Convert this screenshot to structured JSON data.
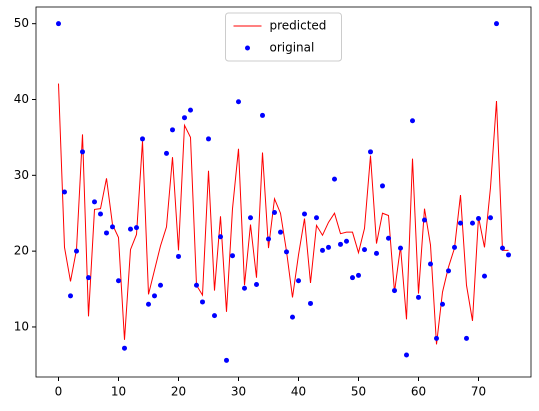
{
  "chart_data": {
    "type": "line_scatter",
    "x": [
      0,
      1,
      2,
      3,
      4,
      5,
      6,
      7,
      8,
      9,
      10,
      11,
      12,
      13,
      14,
      15,
      16,
      17,
      18,
      19,
      20,
      21,
      22,
      23,
      24,
      25,
      26,
      27,
      28,
      29,
      30,
      31,
      32,
      33,
      34,
      35,
      36,
      37,
      38,
      39,
      40,
      41,
      42,
      43,
      44,
      45,
      46,
      47,
      48,
      49,
      50,
      51,
      52,
      53,
      54,
      55,
      56,
      57,
      58,
      59,
      60,
      61,
      62,
      63,
      64,
      65,
      66,
      67,
      68,
      69,
      70,
      71,
      72,
      73,
      74,
      75
    ],
    "series": [
      {
        "name": "predicted",
        "kind": "line",
        "color": "#ff0000",
        "values": [
          42.1,
          20.5,
          16.0,
          20.2,
          35.4,
          11.4,
          25.5,
          25.6,
          29.6,
          23.5,
          21.8,
          8.3,
          20.2,
          22.2,
          34.5,
          14.3,
          17.5,
          20.7,
          23.2,
          32.4,
          20.1,
          36.6,
          35.0,
          15.5,
          14.2,
          30.6,
          14.8,
          24.6,
          12.0,
          25.6,
          33.5,
          15.5,
          23.5,
          16.5,
          33.0,
          20.4,
          26.9,
          25.0,
          20.0,
          13.9,
          19.5,
          24.3,
          15.8,
          23.4,
          22.1,
          23.8,
          25.0,
          22.3,
          22.5,
          22.5,
          19.8,
          23.0,
          32.6,
          21.0,
          25.0,
          24.7,
          14.6,
          20.6,
          11.0,
          32.2,
          14.4,
          25.6,
          20.8,
          7.7,
          14.6,
          17.9,
          20.4,
          27.4,
          15.5,
          10.8,
          24.5,
          20.5,
          28.4,
          39.8,
          20.1,
          20.1
        ]
      },
      {
        "name": "original",
        "kind": "scatter",
        "color": "#0000ff",
        "values": [
          50,
          27.8,
          14.1,
          20,
          33.1,
          16.5,
          26.5,
          24.9,
          22.4,
          23.2,
          16.1,
          7.2,
          22.9,
          23.1,
          34.8,
          13.0,
          14.1,
          15.5,
          32.9,
          36.0,
          19.3,
          37.6,
          38.6,
          15.5,
          13.3,
          34.8,
          11.5,
          21.9,
          5.6,
          19.4,
          39.7,
          15.1,
          24.4,
          15.6,
          37.9,
          21.6,
          25.1,
          22.5,
          19.9,
          11.3,
          16.1,
          24.9,
          13.1,
          24.4,
          20.1,
          20.5,
          29.5,
          20.9,
          21.3,
          16.5,
          16.8,
          20.2,
          33.1,
          19.7,
          28.6,
          21.7,
          14.8,
          20.4,
          6.3,
          37.2,
          13.9,
          24.1,
          18.3,
          8.5,
          13.0,
          17.4,
          20.5,
          23.7,
          8.5,
          23.7,
          24.3,
          16.7,
          24.4,
          50,
          20.4,
          19.5
        ]
      }
    ],
    "xlim": [
      -3.75,
      78.75
    ],
    "xticks": [
      0,
      10,
      20,
      30,
      40,
      50,
      60,
      70
    ],
    "ylim": [
      3.4,
      52.2
    ],
    "yticks": [
      10,
      20,
      30,
      40,
      50
    ],
    "legend": "upper center"
  }
}
